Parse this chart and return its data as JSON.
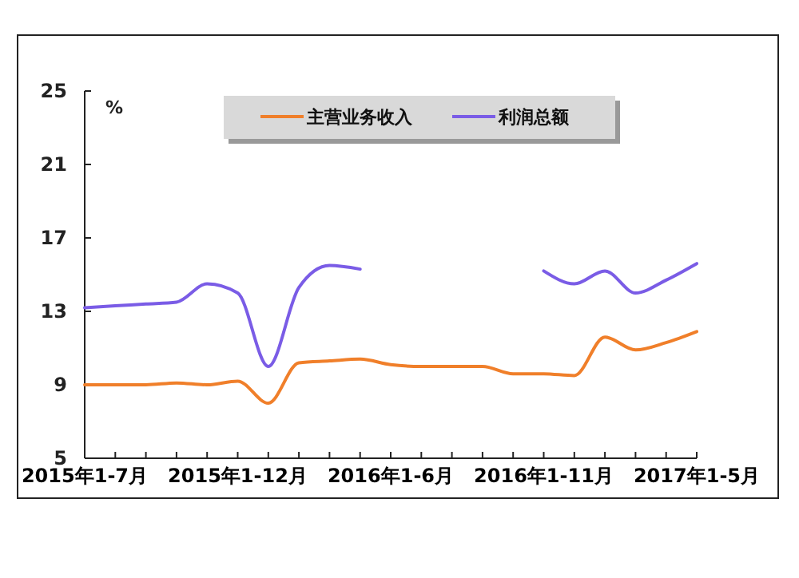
{
  "chart_data": {
    "type": "line",
    "ylabel": "%",
    "categories": [
      "2015年1-7月",
      null,
      null,
      null,
      null,
      "2015年1-12月",
      null,
      null,
      null,
      null,
      "2016年1-6月",
      null,
      null,
      null,
      null,
      "2016年1-11月",
      null,
      null,
      null,
      null,
      "2017年1-5月"
    ],
    "series": [
      {
        "name": "主营业务收入",
        "color": "#f07f2a",
        "values": [
          9.0,
          9.0,
          9.0,
          9.1,
          9.0,
          9.2,
          8.0,
          10.2,
          10.3,
          10.4,
          10.1,
          10.0,
          10.0,
          10.0,
          9.6,
          9.6,
          9.5,
          11.6,
          10.9,
          11.3,
          11.9
        ]
      },
      {
        "name": "利润总额",
        "color": "#7a5ce6",
        "values": [
          13.2,
          13.3,
          13.4,
          13.5,
          14.5,
          14.0,
          10.0,
          14.3,
          15.5,
          15.3,
          null,
          null,
          null,
          null,
          null,
          15.2,
          14.5,
          15.2,
          14.0,
          14.7,
          15.6
        ]
      }
    ],
    "ylim": [
      5,
      25
    ],
    "yticks": [
      5,
      9,
      13,
      17,
      21,
      25
    ],
    "grid": false,
    "legend": "top",
    "marker": "none",
    "line_style": "solid"
  }
}
